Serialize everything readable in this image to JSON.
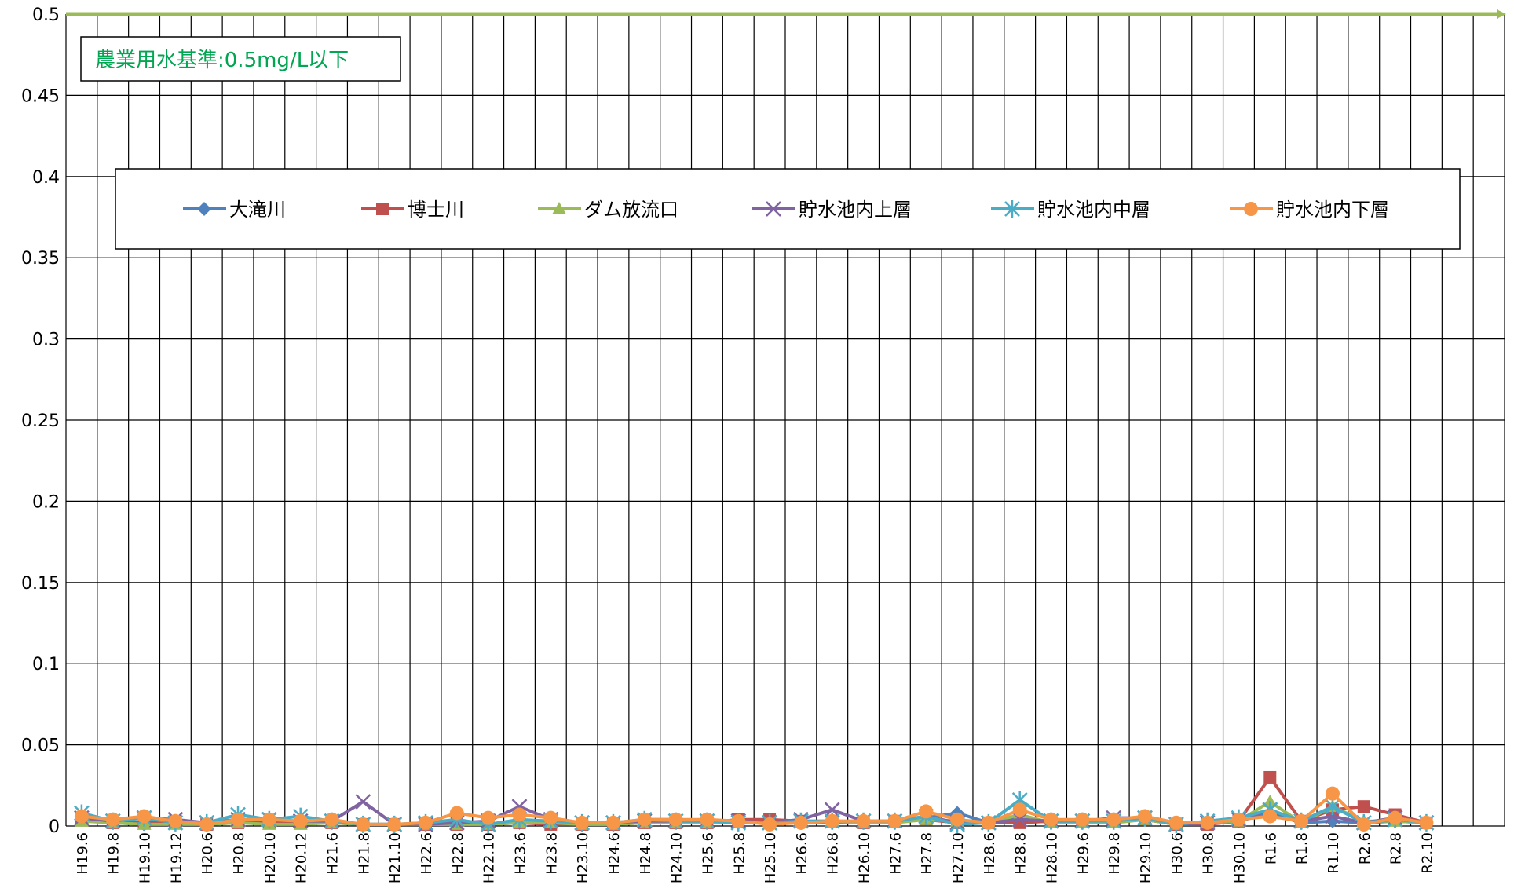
{
  "chart_data": {
    "type": "line",
    "ylim": [
      0,
      0.5
    ],
    "yticks": [
      0,
      0.05,
      0.1,
      0.15,
      0.2,
      0.25,
      0.3,
      0.35,
      0.4,
      0.45,
      0.5
    ],
    "ytick_labels": [
      "0",
      "0.05",
      "0.1",
      "0.15",
      "0.2",
      "0.25",
      "0.3",
      "0.35",
      "0.4",
      "0.45",
      "0.5"
    ],
    "categories": [
      "H19.6",
      "H19.8",
      "H19.10",
      "H19.12",
      "H20.6",
      "H20.8",
      "H20.10",
      "H20.12",
      "H21.6",
      "H21.8",
      "H21.10",
      "H22.6",
      "H22.8",
      "H22.10",
      "H23.6",
      "H23.8",
      "H23.10",
      "H24.6",
      "H24.8",
      "H24.10",
      "H25.6",
      "H25.8",
      "H25.10",
      "H26.6",
      "H26.8",
      "H26.10",
      "H27.6",
      "H27.8",
      "H27.10",
      "H28.6",
      "H28.8",
      "H28.10",
      "H29.6",
      "H29.8",
      "H29.10",
      "H30.6",
      "H30.8",
      "H30.10",
      "R1.6",
      "R1.8",
      "R1.10",
      "R2.6",
      "R2.8",
      "R2.10"
    ],
    "annotation": "農業用水基準:0.5mg/L以下",
    "standard_value": 0.5,
    "standard_color": "#9bbb59",
    "legend_position": "top",
    "grid": "vertical and horizontal",
    "series": [
      {
        "name": "大滝川",
        "marker": "diamond",
        "color": "#4f81bd",
        "values": [
          0.004,
          0.002,
          0.001,
          0.002,
          0.001,
          0.003,
          0.002,
          0.002,
          0.002,
          0.001,
          0.001,
          0.001,
          0.002,
          0.001,
          0.002,
          0.002,
          0.001,
          0.001,
          0.004,
          0.004,
          0.003,
          0.002,
          0.002,
          0.003,
          0.002,
          0.002,
          0.002,
          0.005,
          0.008,
          0.002,
          0.005,
          0.002,
          0.002,
          0.003,
          0.004,
          0.001,
          0.002,
          0.003,
          0.008,
          0.002,
          0.003,
          0.002,
          0.003,
          0.002
        ]
      },
      {
        "name": "博士川",
        "marker": "square",
        "color": "#c0504d",
        "values": [
          0.004,
          0.002,
          0.002,
          0.002,
          0.001,
          0.002,
          0.002,
          0.002,
          0.002,
          0.001,
          0.001,
          0.001,
          0.001,
          0.001,
          0.002,
          0.001,
          0.001,
          0.001,
          0.002,
          0.002,
          0.002,
          0.004,
          0.004,
          0.003,
          0.003,
          0.002,
          0.003,
          0.004,
          0.002,
          0.002,
          0.002,
          0.003,
          0.003,
          0.003,
          0.004,
          0.001,
          0.001,
          0.003,
          0.03,
          0.003,
          0.01,
          0.012,
          0.007,
          0.002
        ]
      },
      {
        "name": "ダム放流口",
        "marker": "triangle",
        "color": "#9bbb59",
        "values": [
          0.003,
          0.002,
          0.001,
          0.001,
          0.001,
          0.002,
          0.001,
          0.001,
          0.002,
          0.001,
          0.001,
          0.001,
          0.001,
          0.001,
          0.002,
          0.002,
          0.001,
          0.001,
          0.002,
          0.002,
          0.002,
          0.002,
          0.002,
          0.002,
          0.003,
          0.002,
          0.002,
          0.004,
          0.003,
          0.002,
          0.007,
          0.002,
          0.002,
          0.002,
          0.004,
          0.001,
          0.002,
          0.003,
          0.015,
          0.002,
          0.012,
          0.003,
          0.003,
          0.002
        ]
      },
      {
        "name": "貯水池内上層",
        "marker": "x",
        "color": "#8064a2",
        "values": [
          0.005,
          0.003,
          0.005,
          0.004,
          0.002,
          0.004,
          0.004,
          0.003,
          0.003,
          0.015,
          0.001,
          0.001,
          0.002,
          0.003,
          0.012,
          0.004,
          0.002,
          0.002,
          0.003,
          0.003,
          0.003,
          0.003,
          0.002,
          0.004,
          0.01,
          0.003,
          0.003,
          0.006,
          0.002,
          0.002,
          0.004,
          0.003,
          0.003,
          0.005,
          0.005,
          0.001,
          0.002,
          0.004,
          0.01,
          0.003,
          0.006,
          0.002,
          0.005,
          0.002
        ]
      },
      {
        "name": "貯水池内中層",
        "marker": "star",
        "color": "#4bacc6",
        "values": [
          0.008,
          0.003,
          0.005,
          0.002,
          0.002,
          0.007,
          0.004,
          0.006,
          0.003,
          0.001,
          0.001,
          0.002,
          0.004,
          0.001,
          0.004,
          0.003,
          0.002,
          0.002,
          0.004,
          0.003,
          0.003,
          0.002,
          0.002,
          0.003,
          0.003,
          0.003,
          0.003,
          0.006,
          0.001,
          0.002,
          0.016,
          0.003,
          0.003,
          0.003,
          0.005,
          0.001,
          0.003,
          0.005,
          0.01,
          0.003,
          0.012,
          0.002,
          0.004,
          0.002
        ]
      },
      {
        "name": "貯水池内下層",
        "marker": "circle",
        "color": "#f79646",
        "values": [
          0.006,
          0.004,
          0.006,
          0.003,
          0.001,
          0.004,
          0.004,
          0.003,
          0.004,
          0.001,
          0.001,
          0.002,
          0.008,
          0.005,
          0.007,
          0.005,
          0.002,
          0.002,
          0.004,
          0.004,
          0.004,
          0.003,
          0.001,
          0.002,
          0.003,
          0.003,
          0.003,
          0.009,
          0.004,
          0.002,
          0.01,
          0.004,
          0.004,
          0.004,
          0.006,
          0.002,
          0.002,
          0.004,
          0.006,
          0.003,
          0.02,
          0.001,
          0.005,
          0.002
        ]
      }
    ]
  }
}
